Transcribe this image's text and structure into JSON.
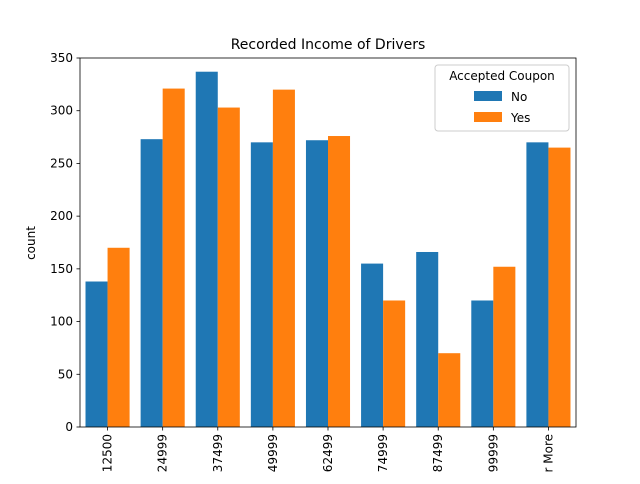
{
  "chart_data": {
    "type": "bar",
    "title": "Recorded Income of Drivers",
    "xlabel": "",
    "ylabel": "count",
    "ylim": [
      0,
      350
    ],
    "yticks": [
      0,
      50,
      100,
      150,
      200,
      250,
      300,
      350
    ],
    "categories": [
      "12500",
      "24999",
      "37499",
      "49999",
      "62499",
      "74999",
      "87499",
      "99999",
      "r More"
    ],
    "series": [
      {
        "name": "No",
        "color": "#1f77b4",
        "values": [
          138,
          273,
          337,
          270,
          272,
          155,
          166,
          120,
          270
        ]
      },
      {
        "name": "Yes",
        "color": "#ff7f0e",
        "values": [
          170,
          321,
          303,
          320,
          276,
          120,
          70,
          152,
          265
        ]
      }
    ],
    "legend": {
      "title": "Accepted Coupon",
      "placement": "top-right"
    },
    "grid": false,
    "xtick_rotation": "vertical"
  }
}
